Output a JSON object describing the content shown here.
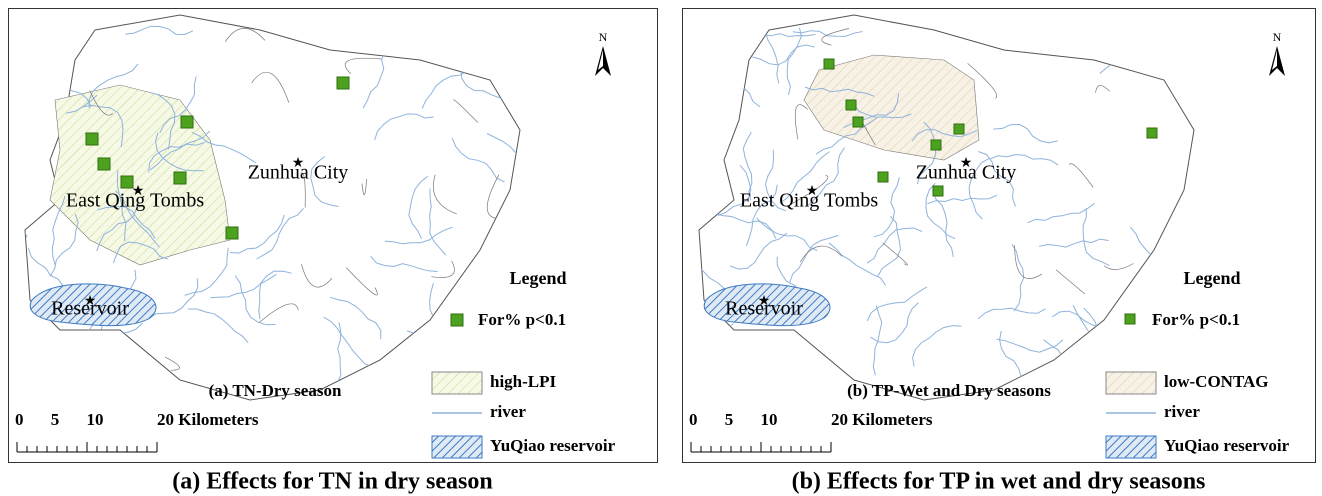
{
  "panels": [
    {
      "caption": "(a)  Effects for TN in dry season",
      "subtitle": "(a) TN-Dry season",
      "places": [
        "Zunhua City",
        "East Qing Tombs",
        "Reservoir"
      ],
      "north": "N",
      "legend": {
        "title": "Legend",
        "points": "For% p<0.1",
        "items": [
          "high-LPI",
          "river",
          "YuQiao reservoir"
        ]
      },
      "scale": [
        "0",
        "5",
        "10",
        "20 Kilometers"
      ]
    },
    {
      "caption": "(b)  Effects for TP in wet and dry seasons",
      "subtitle": "(b) TP-Wet and Dry seasons",
      "places": [
        "Zunhua City",
        "East Qing Tombs",
        "Reservoir"
      ],
      "north": "N",
      "legend": {
        "title": "Legend",
        "points": "For% p<0.1",
        "items": [
          "low-CONTAG",
          "river",
          "YuQiao reservoir"
        ]
      },
      "scale": [
        "0",
        "5",
        "10",
        "20 Kilometers"
      ]
    }
  ]
}
